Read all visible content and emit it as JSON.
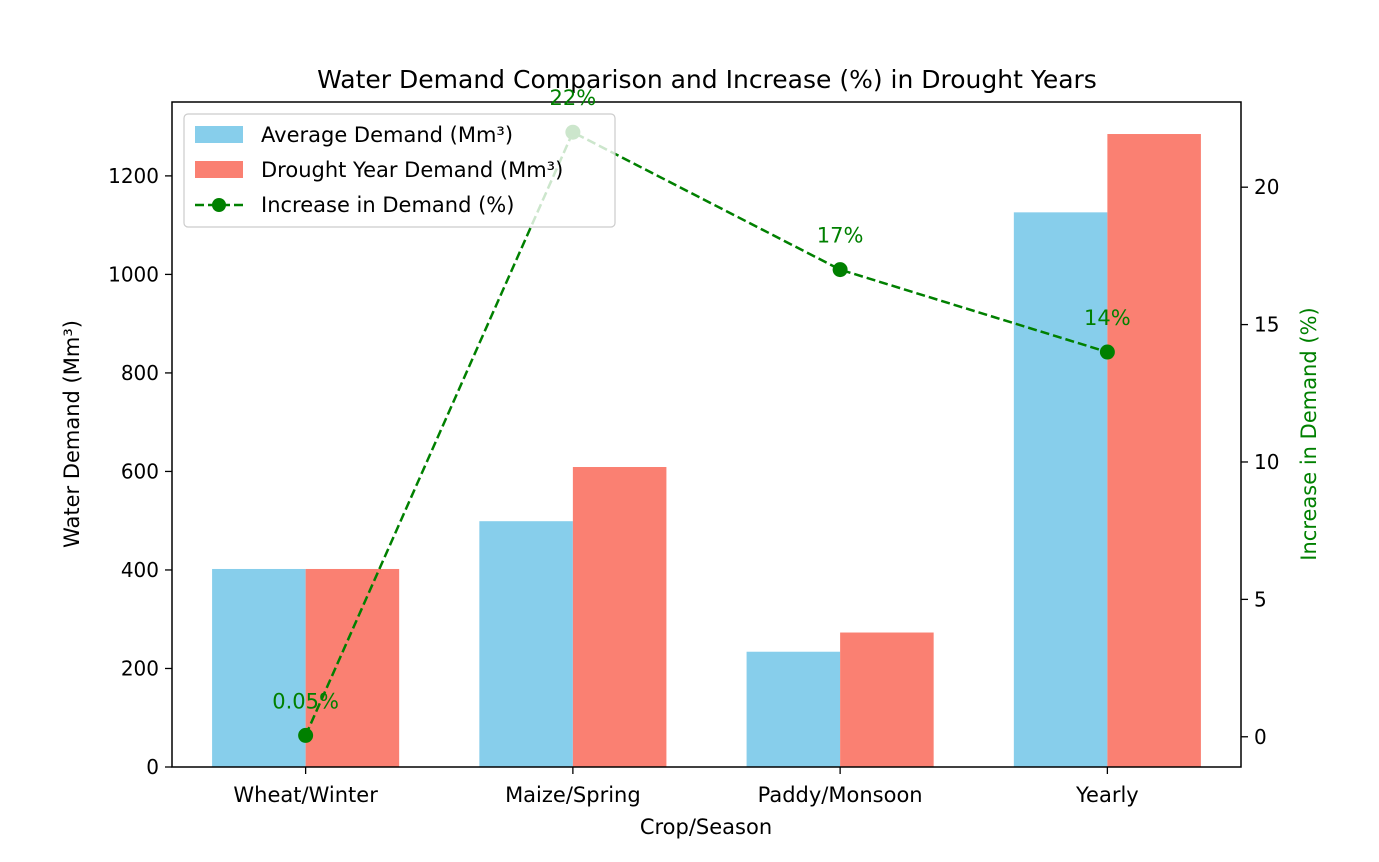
{
  "chart_data": {
    "type": "bar",
    "title": "Water Demand Comparison and Increase (%) in Drought Years",
    "xlabel": "Crop/Season",
    "ylabel": "Water Demand (Mm³)",
    "y2label": "Increase in Demand (%)",
    "categories": [
      "Wheat/Winter",
      "Maize/Spring",
      "Paddy/Monsoon",
      "Yearly"
    ],
    "series": [
      {
        "name": "Average Demand (Mm³)",
        "type": "bar",
        "axis": "left",
        "color": "#87CEEB",
        "values": [
          402,
          499,
          234,
          1126
        ]
      },
      {
        "name": "Drought Year Demand (Mm³)",
        "type": "bar",
        "axis": "left",
        "color": "#FA8072",
        "values": [
          402,
          609,
          273,
          1285
        ]
      },
      {
        "name": "Increase in Demand (%)",
        "type": "line",
        "axis": "right",
        "color": "#008000",
        "style": "dashed",
        "marker": "circle",
        "values": [
          0.05,
          22,
          17,
          14
        ],
        "labels": [
          "0.05%",
          "22%",
          "17%",
          "14%"
        ]
      }
    ],
    "ylim": [
      0,
      1350
    ],
    "yticks": [
      0,
      200,
      400,
      600,
      800,
      1000,
      1200
    ],
    "y2lim": [
      -1.1,
      23.1
    ],
    "y2ticks": [
      0,
      5,
      10,
      15,
      20
    ],
    "grid": false,
    "legend": "top-left"
  }
}
